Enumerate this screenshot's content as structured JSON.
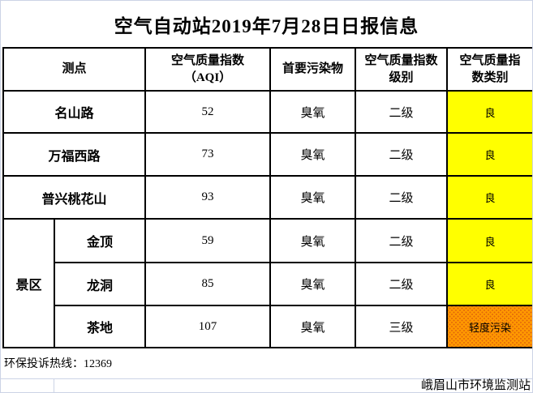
{
  "title": "空气自动站2019年7月28日日报信息",
  "table": {
    "headers": {
      "site": "测点",
      "aqi": "空气质量指数\n（AQI）",
      "pollutant": "首要污染物",
      "level": "空气质量指数\n级别",
      "category": "空气质量指\n数类别"
    },
    "rows": [
      {
        "site": "名山路",
        "aqi": "52",
        "pollutant": "臭氧",
        "level": "二级",
        "category": "良",
        "category_color": "#FFFF00"
      },
      {
        "site": "万福西路",
        "aqi": "73",
        "pollutant": "臭氧",
        "level": "二级",
        "category": "良",
        "category_color": "#FFFF00"
      },
      {
        "site": "普兴桃花山",
        "aqi": "93",
        "pollutant": "臭氧",
        "level": "二级",
        "category": "良",
        "category_color": "#FFFF00"
      }
    ],
    "group": {
      "label": "景区",
      "rows": [
        {
          "site": "金顶",
          "aqi": "59",
          "pollutant": "臭氧",
          "level": "二级",
          "category": "良",
          "category_color": "#FFFF00"
        },
        {
          "site": "龙洞",
          "aqi": "85",
          "pollutant": "臭氧",
          "level": "二级",
          "category": "良",
          "category_color": "#FFFF00"
        },
        {
          "site": "茶地",
          "aqi": "107",
          "pollutant": "臭氧",
          "level": "三级",
          "category": "轻度污染",
          "category_color": "#FF9900"
        }
      ]
    }
  },
  "footer": {
    "hotline": "环保投诉热线：12369",
    "org": "峨眉山市环境监测站"
  },
  "colors": {
    "category_good": "#FFFF00",
    "category_light_pollution": "#FF9900",
    "dither_dot": "#E2660B",
    "table_border": "#000000",
    "gridline": "#CCD3E6"
  }
}
